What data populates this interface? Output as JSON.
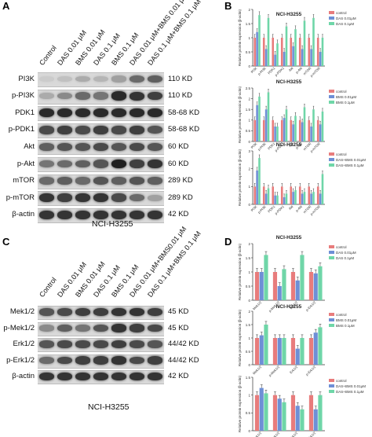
{
  "panels": {
    "A": "A",
    "B": "B",
    "C": "C",
    "D": "D"
  },
  "blotA": {
    "lanes": [
      "Control",
      "DAS 0.01 μM",
      "BMS 0.01 μM",
      "DAS 0.1 μM",
      "BMS 0.1 μM",
      "DAS 0.01 μM+BMS 0.01 μM",
      "DAS 0.1 μM+BMS 0.1 μM"
    ],
    "rows": [
      {
        "name": "PI3K",
        "kd": "110 KD",
        "intensity": [
          0.15,
          0.2,
          0.3,
          0.25,
          0.35,
          0.6,
          0.65
        ]
      },
      {
        "name": "p-PI3K",
        "kd": "110 KD",
        "intensity": [
          0.3,
          0.45,
          0.6,
          0.55,
          0.9,
          0.85,
          0.8
        ]
      },
      {
        "name": "PDK1",
        "kd": "58-68 KD",
        "intensity": [
          0.9,
          0.9,
          0.9,
          0.9,
          0.9,
          0.9,
          0.9
        ]
      },
      {
        "name": "p-PDK1",
        "kd": "58-68 KD",
        "intensity": [
          0.75,
          0.8,
          0.75,
          0.8,
          0.75,
          0.8,
          0.7
        ]
      },
      {
        "name": "Akt",
        "kd": "60 KD",
        "intensity": [
          0.65,
          0.7,
          0.7,
          0.75,
          0.7,
          0.75,
          0.7
        ]
      },
      {
        "name": "p-Akt",
        "kd": "60 KD",
        "intensity": [
          0.55,
          0.6,
          0.65,
          0.7,
          0.95,
          0.8,
          0.85
        ]
      },
      {
        "name": "mTOR",
        "kd": "289 KD",
        "intensity": [
          0.6,
          0.65,
          0.6,
          0.7,
          0.65,
          0.7,
          0.65
        ]
      },
      {
        "name": "p-mTOR",
        "kd": "289 KD",
        "intensity": [
          0.85,
          0.8,
          0.85,
          0.85,
          0.75,
          0.6,
          0.35
        ]
      },
      {
        "name": "β-actin",
        "kd": "42 KD",
        "intensity": [
          0.85,
          0.85,
          0.85,
          0.85,
          0.85,
          0.85,
          0.85
        ]
      }
    ],
    "caption": "NCI-H3255"
  },
  "blotC": {
    "lanes": [
      "Control",
      "DAS 0.01 μM",
      "BMS 0.01 μM",
      "DAS 0.1 μM",
      "BMS 0.1 μM",
      "DAS 0.01 μM+BMS0.01 μM",
      "DAS 0.1 μM+BMS 0.1 μM"
    ],
    "rows": [
      {
        "name": "Mek1/2",
        "kd": "45 KD",
        "intensity": [
          0.7,
          0.75,
          0.8,
          0.8,
          0.85,
          0.85,
          0.8
        ]
      },
      {
        "name": "p-Mek1/2",
        "kd": "45 KD",
        "intensity": [
          0.45,
          0.65,
          0.55,
          0.7,
          0.85,
          0.8,
          0.75
        ]
      },
      {
        "name": "Erk1/2",
        "kd": "44/42 KD",
        "intensity": [
          0.7,
          0.75,
          0.75,
          0.75,
          0.8,
          0.75,
          0.7
        ]
      },
      {
        "name": "p-Erk1/2",
        "kd": "44/42 KD",
        "intensity": [
          0.6,
          0.75,
          0.8,
          0.8,
          0.85,
          0.75,
          0.8
        ]
      },
      {
        "name": "β-actin",
        "kd": "42 KD",
        "intensity": [
          0.85,
          0.85,
          0.85,
          0.85,
          0.85,
          0.85,
          0.85
        ]
      }
    ],
    "caption": "NCI-H3255"
  },
  "chart_data": [
    {
      "type": "bar",
      "title": "NCI-H3255",
      "ylabel": "Relative protein expression (β-actin)",
      "categories": [
        "PI3K",
        "p-PI3K",
        "PDK1",
        "p-PDK1",
        "Akt",
        "p-Akt",
        "mTOR",
        "p-mTOR"
      ],
      "series": [
        {
          "name": "control",
          "values": [
            1.0,
            1.0,
            1.0,
            1.0,
            1.0,
            1.0,
            1.0,
            1.0
          ]
        },
        {
          "name": "DAS 0.01μM",
          "values": [
            1.2,
            0.6,
            0.4,
            0.5,
            0.7,
            0.6,
            0.6,
            0.5
          ]
        },
        {
          "name": "DAS 0.1μM",
          "values": [
            1.8,
            1.7,
            0.8,
            1.4,
            1.3,
            1.6,
            1.7,
            1.0
          ]
        }
      ],
      "ylim": [
        0,
        2.0
      ],
      "colors": [
        "#e87c7c",
        "#6e8fd6",
        "#6fd6a8"
      ]
    },
    {
      "type": "bar",
      "title": "NCI-H3255",
      "ylabel": "Relative protein expression (β-actin)",
      "categories": [
        "PI3K",
        "p-PI3K",
        "PDK1",
        "p-PDK1",
        "Akt",
        "p-Akt",
        "mTOR",
        "p-mTOR"
      ],
      "series": [
        {
          "name": "control",
          "values": [
            1.0,
            1.0,
            1.0,
            1.0,
            1.0,
            1.0,
            1.0,
            1.0
          ]
        },
        {
          "name": "BMS 0.01μM",
          "values": [
            1.7,
            1.5,
            0.7,
            1.1,
            0.8,
            0.9,
            0.7,
            0.8
          ]
        },
        {
          "name": "BMS 0.1μM",
          "values": [
            2.1,
            2.3,
            0.7,
            1.5,
            1.2,
            1.6,
            1.5,
            1.4
          ]
        }
      ],
      "ylim": [
        0,
        2.5
      ],
      "colors": [
        "#e87c7c",
        "#6e8fd6",
        "#6fd6a8"
      ]
    },
    {
      "type": "bar",
      "title": "NCI-H3255",
      "ylabel": "Relative protein expression (β-actin)",
      "categories": [
        "PI3K",
        "p-PI3K",
        "PDK1",
        "p-PDK1",
        "Akt",
        "p-Akt",
        "mTOR",
        "p-mTOR"
      ],
      "series": [
        {
          "name": "control",
          "values": [
            1.0,
            1.0,
            1.0,
            1.0,
            1.0,
            1.0,
            1.0,
            1.0
          ]
        },
        {
          "name": "DAS+BMS 0.01μM",
          "values": [
            1.9,
            0.6,
            0.5,
            0.4,
            0.7,
            0.6,
            0.6,
            0.6
          ]
        },
        {
          "name": "DAS+BMS 0.1μM",
          "values": [
            2.6,
            0.9,
            0.5,
            0.6,
            0.8,
            0.7,
            0.7,
            1.7
          ]
        }
      ],
      "ylim": [
        0,
        3.0
      ],
      "colors": [
        "#e87c7c",
        "#6e8fd6",
        "#6fd6a8"
      ]
    },
    {
      "type": "bar",
      "title": "NCI-H3255",
      "ylabel": "Relative protein expression (β-actin)",
      "categories": [
        "Mek1/2",
        "p-Mek1/2",
        "Erk1/2",
        "p-Erk1/2"
      ],
      "series": [
        {
          "name": "control",
          "values": [
            1.0,
            1.0,
            1.0,
            1.0
          ]
        },
        {
          "name": "DAS 0.01μM",
          "values": [
            1.0,
            0.5,
            0.7,
            0.95
          ]
        },
        {
          "name": "DAS 0.1μM",
          "values": [
            1.6,
            1.1,
            1.6,
            1.2
          ]
        }
      ],
      "ylim": [
        0,
        2.0
      ],
      "colors": [
        "#e87c7c",
        "#6e8fd6",
        "#6fd6a8"
      ]
    },
    {
      "type": "bar",
      "title": "NCI-H3255",
      "ylabel": "Relative protein expression (β-actin)",
      "categories": [
        "Mek1/2",
        "p-Mek1/2",
        "Erk1/2",
        "p-Erk1/2"
      ],
      "series": [
        {
          "name": "control",
          "values": [
            1.0,
            1.0,
            1.0,
            1.0
          ]
        },
        {
          "name": "BMS 0.01μM",
          "values": [
            1.1,
            1.0,
            0.6,
            1.2
          ]
        },
        {
          "name": "BMS 0.1μM",
          "values": [
            1.5,
            1.0,
            1.0,
            1.4
          ]
        }
      ],
      "ylim": [
        0,
        2.0
      ],
      "colors": [
        "#e87c7c",
        "#6e8fd6",
        "#6fd6a8"
      ]
    },
    {
      "type": "bar",
      "title": "",
      "ylabel": "Relative protein expression (β-actin)",
      "categories": [
        "Mek1/2",
        "p-Mek1/2",
        "Erk1/2",
        "p-Erk1/2"
      ],
      "series": [
        {
          "name": "control",
          "values": [
            1.0,
            1.0,
            1.0,
            1.0
          ]
        },
        {
          "name": "DAS+BMS 0.01μM",
          "values": [
            1.2,
            0.9,
            0.7,
            0.6
          ]
        },
        {
          "name": "DAS+BMS 0.1μM",
          "values": [
            1.05,
            0.8,
            0.6,
            1.0
          ]
        }
      ],
      "ylim": [
        0,
        1.5
      ],
      "colors": [
        "#e87c7c",
        "#6e8fd6",
        "#6fd6a8"
      ]
    }
  ]
}
